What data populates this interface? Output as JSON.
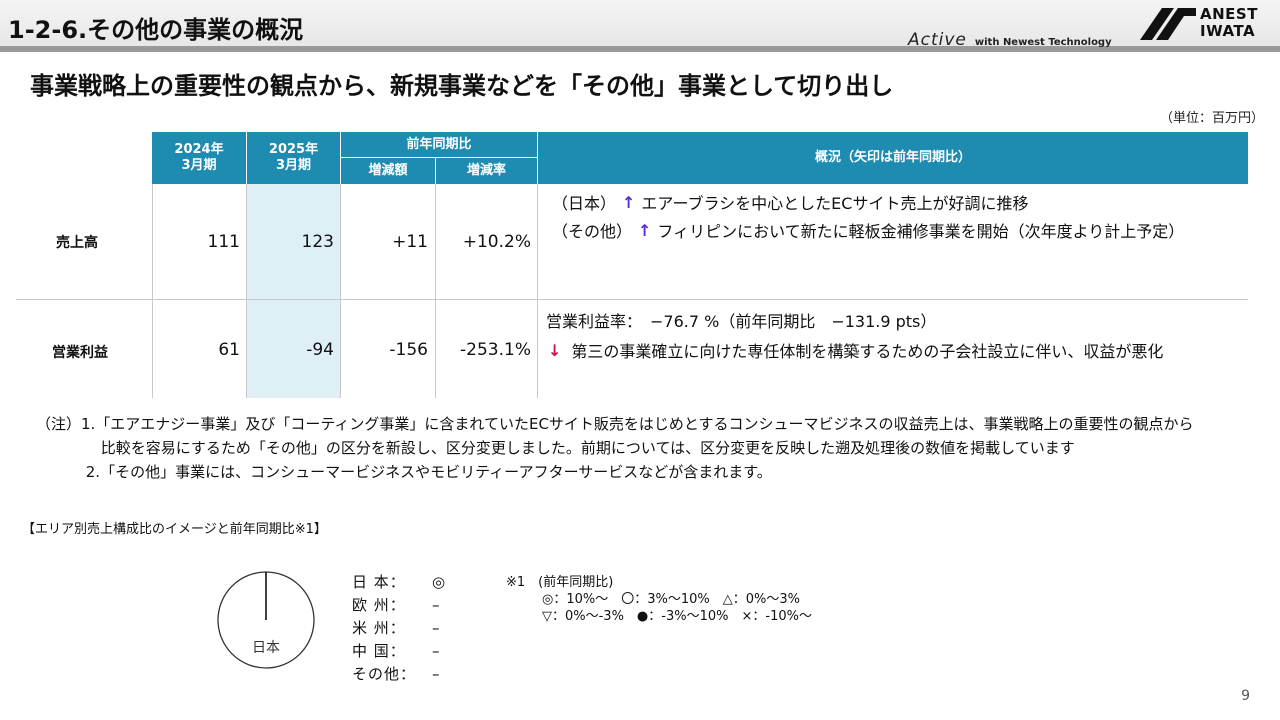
{
  "header": {
    "section_title": "1-2-6.その他の事業の概況",
    "tagline_brand": "Active",
    "tagline_text": "with Newest Technology",
    "logo_line1": "ANEST",
    "logo_line2": "IWATA"
  },
  "headline": "事業戦略上の重要性の観点から、新規事業などを「その他」事業として切り出し",
  "unit_note": "（単位：百万円）",
  "table": {
    "headers": {
      "fy2024": "2024年\n3月期",
      "fy2025": "2025年\n3月期",
      "yoy": "前年同期比",
      "change_amount": "増減額",
      "change_rate": "増減率",
      "overview": "概況（矢印は前年同期比）"
    },
    "rows": [
      {
        "label": "売上高",
        "fy2024": "111",
        "fy2025": "123",
        "change_amount": "+11",
        "change_rate": "+10.2%"
      },
      {
        "label": "営業利益",
        "fy2024": "61",
        "fy2025": "-94",
        "change_amount": "-156",
        "change_rate": "-253.1%"
      }
    ],
    "overview_sales": [
      {
        "prefix": "（日本）",
        "arrow": "↑",
        "text": "エアーブラシを中心としたECサイト売上が好調に推移"
      },
      {
        "prefix": "（その他）",
        "arrow": "↑",
        "text": "フィリピンにおいて新たに軽板金補修事業を開始（次年度より計上予定）"
      }
    ],
    "overview_profit": {
      "margin_line": "営業利益率：　−76.7 %（前年同期比　−131.9 pts）",
      "arrow": "↓",
      "text": "第三の事業確立に向けた専任体制を構築するための子会社設立に伴い、収益が悪化"
    }
  },
  "notes": [
    "（注）1.「エアエナジー事業」及び「コーティング事業」に含まれていたECサイト販売をはじめとするコンシューマビジネスの収益売上は、事業戦略上の重要性の観点から",
    "　　　　 比較を容易にするため「その他」の区分を新設し、区分変更しました。前期については、区分変更を反映した遡及処理後の数値を掲載しています",
    "　　　 2.「その他」事業には、コンシューマービジネスやモビリティーアフターサービスなどが含まれます。"
  ],
  "area_section": {
    "title": "【エリア別売上構成比のイメージと前年同期比※1】",
    "pie_label": "日本",
    "areas": [
      {
        "label": "日 本：",
        "value": "◎"
      },
      {
        "label": "欧 州：",
        "value": "–"
      },
      {
        "label": "米 州：",
        "value": "–"
      },
      {
        "label": "中 国：",
        "value": "–"
      },
      {
        "label": "その他：",
        "value": "–"
      }
    ],
    "legend": [
      "※1　(前年同期比)",
      "◎：10%～　〇：3%～10%　△：0%～3%",
      "▽：0%～-3%　●：-3%～10%　×：-10%～"
    ]
  },
  "page_number": "9"
}
